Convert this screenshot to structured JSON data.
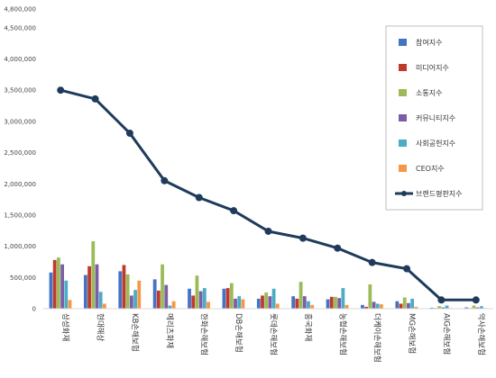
{
  "chart_data": {
    "type": "bar",
    "categories": [
      "삼성화재",
      "현대해상",
      "KB손해보험",
      "메리츠화재",
      "한화손해보험",
      "DB손해보험",
      "롯데손해보험",
      "흥국화재",
      "농협손해보험",
      "더케이손해보험",
      "MG손해보험",
      "AIG손해보험",
      "악사손해보험"
    ],
    "series": [
      {
        "name": "참여지수",
        "kind": "bar",
        "values": [
          580000,
          540000,
          600000,
          470000,
          320000,
          320000,
          160000,
          200000,
          150000,
          60000,
          120000,
          15000,
          20000
        ]
      },
      {
        "name": "미디어지수",
        "kind": "bar",
        "values": [
          780000,
          680000,
          700000,
          290000,
          210000,
          330000,
          210000,
          160000,
          190000,
          30000,
          80000,
          10000,
          10000
        ]
      },
      {
        "name": "소통지수",
        "kind": "bar",
        "values": [
          820000,
          1080000,
          550000,
          710000,
          530000,
          410000,
          260000,
          430000,
          190000,
          390000,
          180000,
          40000,
          50000
        ]
      },
      {
        "name": "커뮤니티지수",
        "kind": "bar",
        "values": [
          710000,
          710000,
          210000,
          380000,
          280000,
          160000,
          200000,
          200000,
          170000,
          110000,
          90000,
          20000,
          20000
        ]
      },
      {
        "name": "사회공헌지수",
        "kind": "bar",
        "values": [
          450000,
          270000,
          300000,
          50000,
          330000,
          200000,
          320000,
          120000,
          330000,
          80000,
          160000,
          50000,
          40000
        ]
      },
      {
        "name": "CEO지수",
        "kind": "bar",
        "values": [
          140000,
          80000,
          450000,
          120000,
          110000,
          150000,
          80000,
          60000,
          60000,
          70000,
          30000,
          10000,
          10000
        ]
      },
      {
        "name": "브랜드평판지수",
        "kind": "line",
        "values": [
          3500000,
          3360000,
          2810000,
          2050000,
          1780000,
          1570000,
          1240000,
          1130000,
          970000,
          740000,
          640000,
          140000,
          140000
        ]
      }
    ],
    "ylim": [
      0,
      4800000
    ],
    "yticks": [
      "0",
      "500,000",
      "1,000,000",
      "1,500,000",
      "2,000,000",
      "2,500,000",
      "3,000,000",
      "3,500,000",
      "4,000,000",
      "4,500,000",
      "4,800,000"
    ],
    "colors": [
      "#4472c4",
      "#c0392b",
      "#9bbb59",
      "#7b5ea7",
      "#4bacc6",
      "#f79646",
      "#1f3b5c"
    ],
    "legend_position": "right",
    "grid": false
  }
}
